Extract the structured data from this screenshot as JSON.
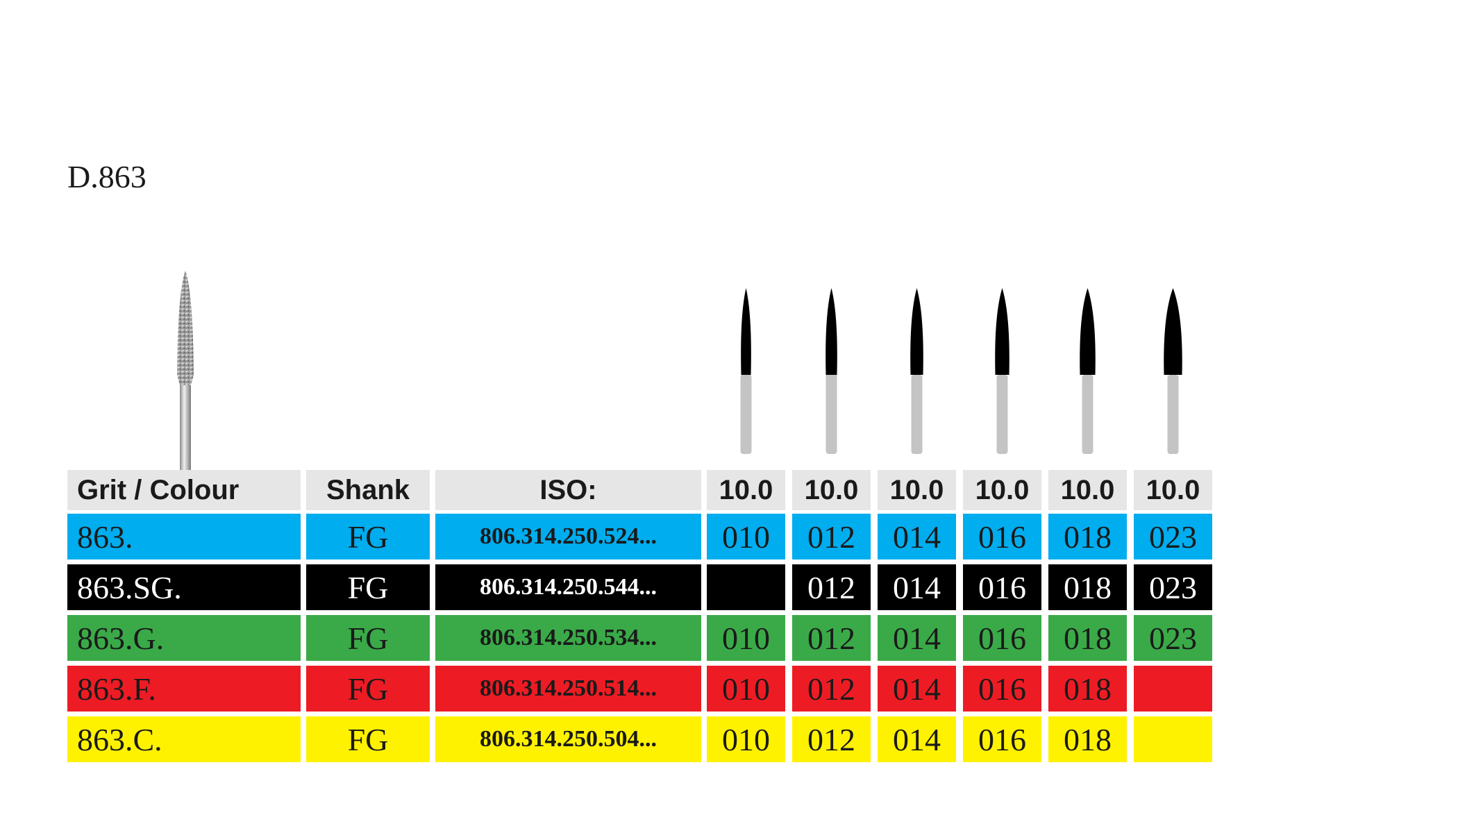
{
  "title": "D.863",
  "header": {
    "grit": "Grit / Colour",
    "shank": "Shank",
    "iso": "ISO:",
    "sizes": [
      "10.0",
      "10.0",
      "10.0",
      "10.0",
      "10.0",
      "10.0"
    ]
  },
  "rows": [
    {
      "grit": "863.",
      "shank": "FG",
      "iso": "806.314.250.524...",
      "sizes": [
        "010",
        "012",
        "014",
        "016",
        "018",
        "023"
      ],
      "bg": "#00adef",
      "fg": "#1a1a1a"
    },
    {
      "grit": "863.SG.",
      "shank": "FG",
      "iso": "806.314.250.544...",
      "sizes": [
        "",
        "012",
        "014",
        "016",
        "018",
        "023"
      ],
      "bg": "#000000",
      "fg": "#ffffff"
    },
    {
      "grit": "863.G.",
      "shank": "FG",
      "iso": "806.314.250.534...",
      "sizes": [
        "010",
        "012",
        "014",
        "016",
        "018",
        "023"
      ],
      "bg": "#3aaa48",
      "fg": "#1a1a1a"
    },
    {
      "grit": "863.F.",
      "shank": "FG",
      "iso": "806.314.250.514...",
      "sizes": [
        "010",
        "012",
        "014",
        "016",
        "018",
        ""
      ],
      "bg": "#ed1c24",
      "fg": "#1a1a1a"
    },
    {
      "grit": "863.C.",
      "shank": "FG",
      "iso": "806.314.250.504...",
      "sizes": [
        "010",
        "012",
        "014",
        "016",
        "018",
        ""
      ],
      "bg": "#fff200",
      "fg": "#1a1a1a"
    }
  ],
  "colors": {
    "header_bg": "#e6e6e6",
    "shank_grey": "#c4c4c4",
    "head_black": "#000000"
  }
}
